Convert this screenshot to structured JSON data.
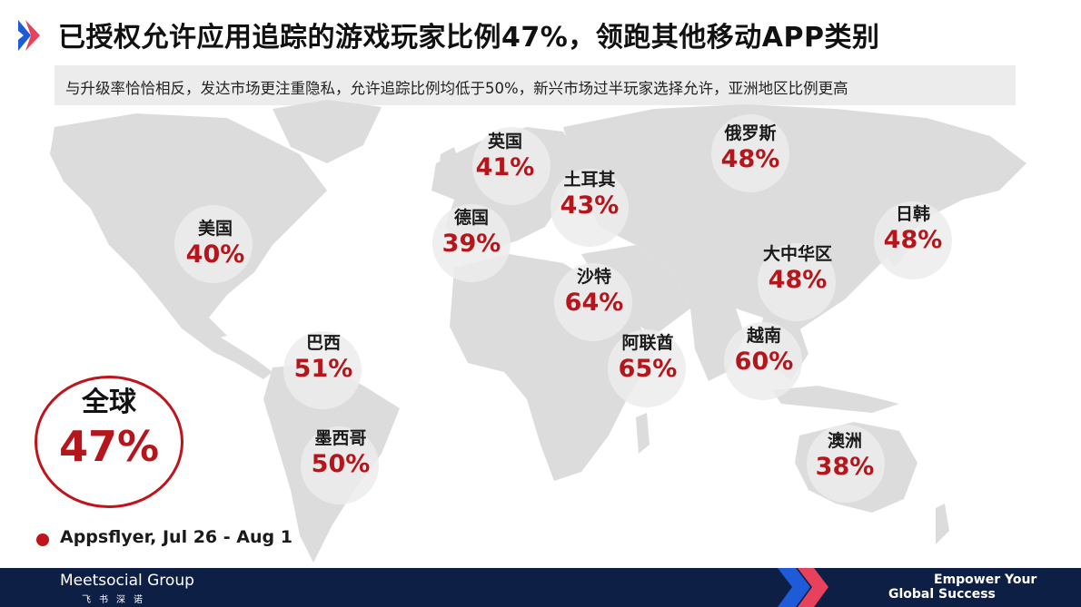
{
  "header": {
    "title": "已授权允许应用追踪的游戏玩家比例47%，领跑其他移动APP类别",
    "subtitle": "与升级率恰恰相反，发达市场更注重隐私，允许追踪比例均低于50%，新兴市场过半玩家选择允许，亚洲地区比例更高"
  },
  "regions": [
    {
      "name": "英国",
      "value": "41%"
    },
    {
      "name": "俄罗斯",
      "value": "48%"
    },
    {
      "name": "土耳其",
      "value": "43%"
    },
    {
      "name": "德国",
      "value": "39%"
    },
    {
      "name": "美国",
      "value": "40%"
    },
    {
      "name": "日韩",
      "value": "48%"
    },
    {
      "name": "大中华区",
      "value": "48%"
    },
    {
      "name": "沙特",
      "value": "64%"
    },
    {
      "name": "阿联酋",
      "value": "65%"
    },
    {
      "name": "越南",
      "value": "60%"
    },
    {
      "name": "巴西",
      "value": "51%"
    },
    {
      "name": "墨西哥",
      "value": "50%"
    },
    {
      "name": "澳洲",
      "value": "38%"
    }
  ],
  "global": {
    "name": "全球",
    "value": "47%"
  },
  "source": "Appsflyer, Jul 26 - Aug 1",
  "footer": {
    "brand": "Meetsocial Group",
    "brand_sub": "飞书深诺",
    "slogan_line1": "Empower Your",
    "slogan_line2": "Global Success"
  },
  "colors": {
    "accent": "#b5161c",
    "footer_bg": "#0e1f45",
    "map": "#dcdcdc"
  },
  "icons": {
    "brand_mark": "chevron-logo-icon",
    "map": "world-map"
  }
}
